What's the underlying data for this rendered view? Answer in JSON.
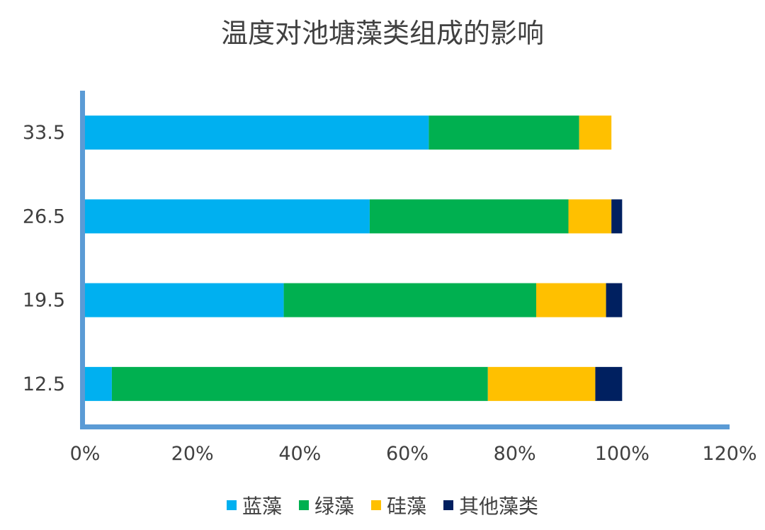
{
  "chart_data": {
    "type": "bar",
    "orientation": "horizontal",
    "stacked": true,
    "title": "温度对池塘藻类组成的影响",
    "xlabel": "",
    "ylabel": "",
    "categories": [
      "12.5",
      "19.5",
      "26.5",
      "33.5"
    ],
    "series": [
      {
        "name": "蓝藻",
        "color": "#00B0F0",
        "values": [
          0.05,
          0.37,
          0.53,
          0.64
        ]
      },
      {
        "name": "绿藻",
        "color": "#00B050",
        "values": [
          0.7,
          0.47,
          0.37,
          0.28
        ]
      },
      {
        "name": "硅藻",
        "color": "#FFC000",
        "values": [
          0.2,
          0.13,
          0.08,
          0.06
        ]
      },
      {
        "name": "其他藻类",
        "color": "#002060",
        "values": [
          0.05,
          0.03,
          0.02,
          0.0
        ]
      }
    ],
    "xlim": [
      0,
      1.2
    ],
    "xticks": [
      0,
      0.2,
      0.4,
      0.6,
      0.8,
      1.0,
      1.2
    ],
    "xtick_labels": [
      "0%",
      "20%",
      "40%",
      "60%",
      "80%",
      "100%",
      "120%"
    ],
    "grid": false,
    "legend_position": "bottom",
    "axis_color": "#5B9BD5"
  }
}
